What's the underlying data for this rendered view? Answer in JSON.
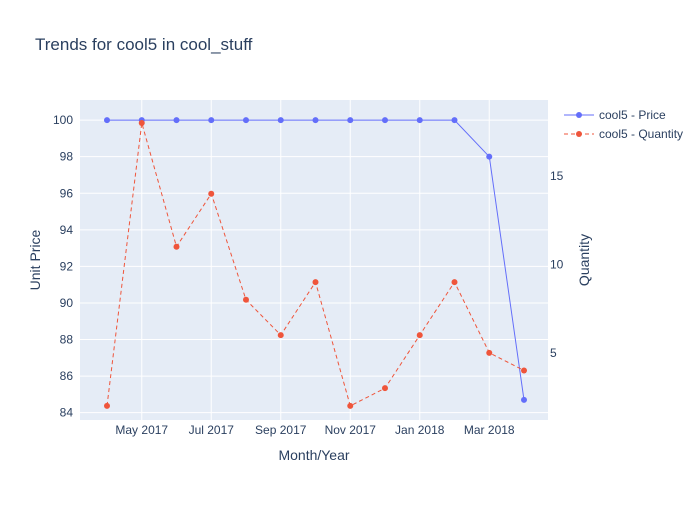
{
  "chart_data": {
    "type": "line",
    "title": "Trends for cool5 in cool_stuff",
    "xlabel": "Month/Year",
    "ylabel": "Unit Price",
    "y2label": "Quantity",
    "x": [
      "2017-04",
      "2017-05",
      "2017-06",
      "2017-07",
      "2017-08",
      "2017-09",
      "2017-10",
      "2017-11",
      "2017-12",
      "2018-01",
      "2018-02",
      "2018-03",
      "2018-04"
    ],
    "x_tick_labels": [
      {
        "x": "2017-05",
        "label": "May 2017"
      },
      {
        "x": "2017-07",
        "label": "Jul 2017"
      },
      {
        "x": "2017-09",
        "label": "Sep 2017"
      },
      {
        "x": "2017-11",
        "label": "Nov 2017"
      },
      {
        "x": "2018-01",
        "label": "Jan 2018"
      },
      {
        "x": "2018-03",
        "label": "Mar 2018"
      }
    ],
    "y_ticks": [
      84,
      86,
      88,
      90,
      92,
      94,
      96,
      98,
      100
    ],
    "y2_ticks": [
      5,
      10,
      15
    ],
    "ylim": [
      83.6,
      101.1
    ],
    "y2lim": [
      1.2,
      19.3
    ],
    "grid": true,
    "legend_position": "top-right",
    "series": [
      {
        "name": "cool5 - Price",
        "axis": "y",
        "line_style": "solid",
        "color": "#636efa",
        "values": [
          100,
          100,
          100,
          100,
          100,
          100,
          100,
          100,
          100,
          100,
          100,
          98,
          84.7
        ]
      },
      {
        "name": "cool5 - Quantity",
        "axis": "y2",
        "line_style": "dash",
        "color": "#ef553b",
        "values": [
          2,
          18,
          11,
          14,
          8,
          6,
          9,
          2,
          3,
          6,
          9,
          5,
          4
        ]
      }
    ],
    "plot_bg": "#e5ecf6",
    "text_color": "#2a3f5f"
  }
}
